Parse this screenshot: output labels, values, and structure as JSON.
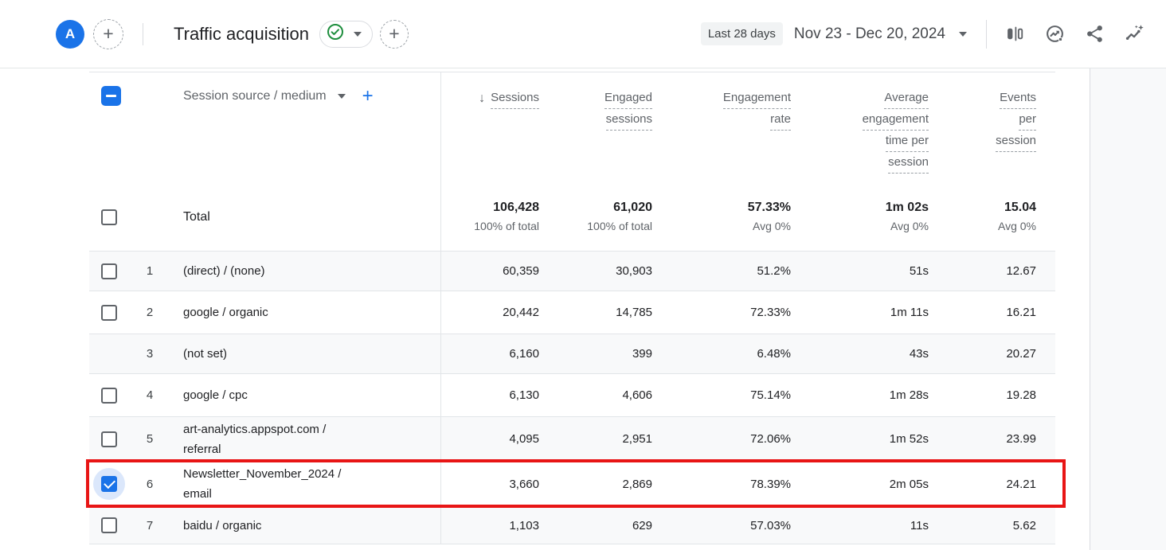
{
  "colors": {
    "accent_blue": "#1a73e8",
    "green_check": "#1e8e3e",
    "highlight_red": "#e81515",
    "header_gray": "#5f6368",
    "alt_row_bg": "#f8f9fa"
  },
  "icons": {
    "plus": "+",
    "sort_descending": "↓"
  },
  "topbar": {
    "avatar_letter": "A",
    "title": "Traffic acquisition",
    "date_preset": "Last 28 days",
    "date_range": "Nov 23 - Dec 20, 2024"
  },
  "table": {
    "dimension_header": "Session source / medium",
    "column_headers": [
      {
        "lines": [
          "Sessions"
        ],
        "sorted_desc": true
      },
      {
        "lines": [
          "Engaged",
          "sessions"
        ]
      },
      {
        "lines": [
          "Engagement",
          "rate"
        ]
      },
      {
        "lines": [
          "Average",
          "engagement",
          "time per",
          "session"
        ]
      },
      {
        "lines": [
          "Events",
          "per",
          "session"
        ]
      }
    ],
    "total": {
      "label": "Total",
      "metrics": [
        {
          "value": "106,428",
          "sub": "100% of total"
        },
        {
          "value": "61,020",
          "sub": "100% of total"
        },
        {
          "value": "57.33%",
          "sub": "Avg 0%"
        },
        {
          "value": "1m 02s",
          "sub": "Avg 0%"
        },
        {
          "value": "15.04",
          "sub": "Avg 0%"
        }
      ]
    },
    "rows": [
      {
        "num": "1",
        "source_lines": [
          "(direct) / (none)"
        ],
        "has_checkbox": true,
        "checked": false,
        "values": [
          "60,359",
          "30,903",
          "51.2%",
          "51s",
          "12.67"
        ]
      },
      {
        "num": "2",
        "source_lines": [
          "google / organic"
        ],
        "has_checkbox": true,
        "checked": false,
        "values": [
          "20,442",
          "14,785",
          "72.33%",
          "1m 11s",
          "16.21"
        ]
      },
      {
        "num": "3",
        "source_lines": [
          "(not set)"
        ],
        "has_checkbox": false,
        "checked": false,
        "values": [
          "6,160",
          "399",
          "6.48%",
          "43s",
          "20.27"
        ]
      },
      {
        "num": "4",
        "source_lines": [
          "google / cpc"
        ],
        "has_checkbox": true,
        "checked": false,
        "values": [
          "6,130",
          "4,606",
          "75.14%",
          "1m 28s",
          "19.28"
        ]
      },
      {
        "num": "5",
        "source_lines": [
          "art-analytics.appspot.com /",
          "referral"
        ],
        "has_checkbox": true,
        "checked": false,
        "values": [
          "4,095",
          "2,951",
          "72.06%",
          "1m 52s",
          "23.99"
        ]
      },
      {
        "num": "6",
        "source_lines": [
          "Newsletter_November_2024 /",
          "email"
        ],
        "has_checkbox": true,
        "checked": true,
        "highlighted": true,
        "values": [
          "3,660",
          "2,869",
          "78.39%",
          "2m 05s",
          "24.21"
        ]
      },
      {
        "num": "7",
        "source_lines": [
          "baidu / organic"
        ],
        "has_checkbox": true,
        "checked": false,
        "values": [
          "1,103",
          "629",
          "57.03%",
          "11s",
          "5.62"
        ]
      }
    ]
  }
}
